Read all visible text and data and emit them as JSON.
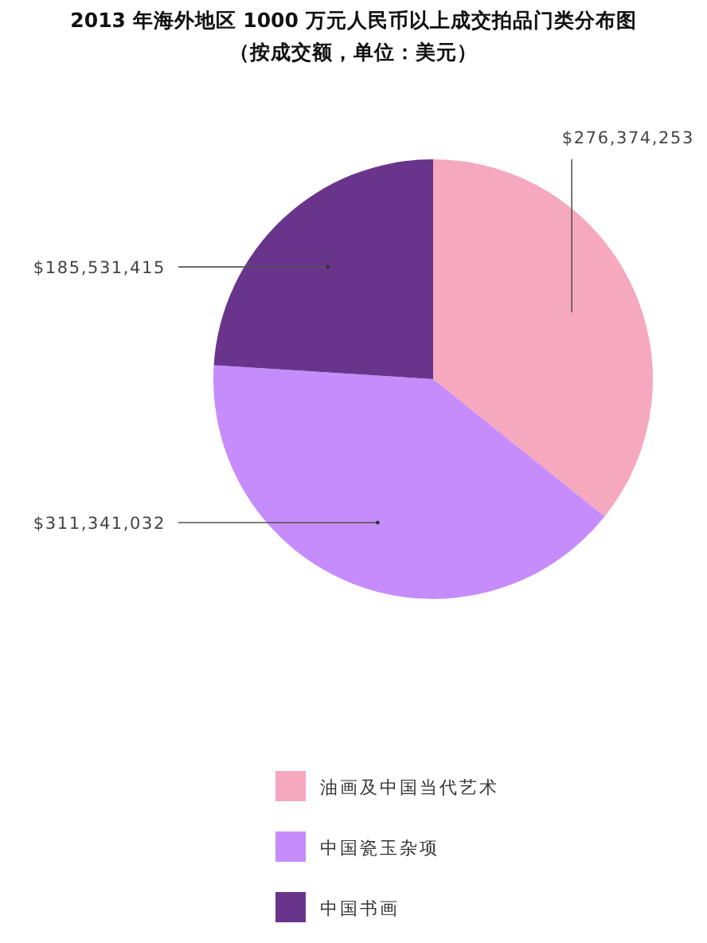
{
  "chart_data": {
    "type": "pie",
    "title": "2013 年海外地区 1000 万元人民币以上成交拍品门类分布图",
    "subtitle": "（按成交额，单位：美元）",
    "categories": [
      "油画及中国当代艺术",
      "中国瓷玉杂项",
      "中国书画"
    ],
    "values": [
      276374253,
      311341032,
      185531415
    ],
    "colors": [
      "#f5a8be",
      "#c68cfc",
      "#69358c"
    ],
    "value_labels": [
      "$276,374,253",
      "$311,341,032",
      "$185,531,415"
    ],
    "legend": "bottom"
  }
}
